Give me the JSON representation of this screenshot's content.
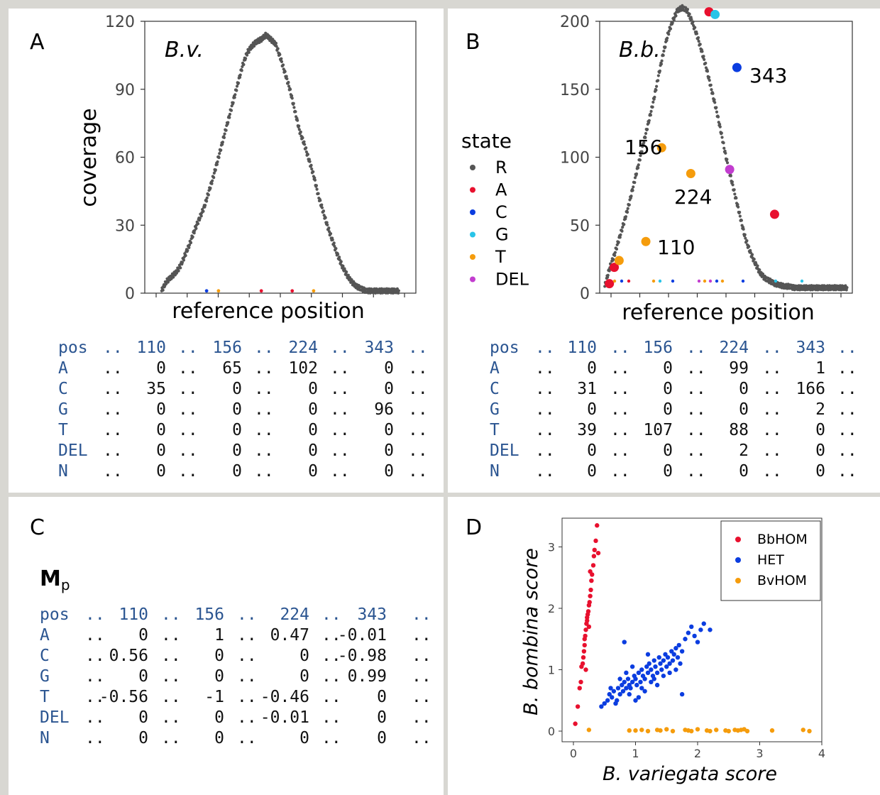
{
  "colors": {
    "R": "#555555",
    "A": "#e8102e",
    "C": "#0b3de0",
    "G": "#28c4e8",
    "T": "#f59c0c",
    "DEL": "#c23dcf",
    "rowlabel": "#2b5591"
  },
  "panels": {
    "A": {
      "label": "A",
      "chart_data": {
        "type": "scatter",
        "title": "B.v.",
        "xlabel": "reference position",
        "ylabel": "coverage",
        "ylim": [
          0,
          120
        ],
        "yticks": [
          "0",
          "30",
          "60",
          "90",
          "120"
        ],
        "series": [
          {
            "name": "R",
            "x": [
              1,
              20,
              40,
              60,
              80,
              100,
              120,
              140,
              160,
              180,
              200,
              220,
              240,
              260,
              280,
              300,
              320,
              340,
              360,
              380,
              400,
              420,
              440,
              460,
              480,
              500,
              520,
              540,
              560,
              580,
              600,
              620,
              640,
              660,
              680,
              700,
              720,
              740,
              760,
              780,
              800,
              820,
              840,
              860,
              880,
              900,
              920,
              940,
              960,
              980,
              1000
            ],
            "y": [
              1,
              5,
              7,
              9,
              12,
              17,
              22,
              28,
              33,
              38,
              45,
              52,
              60,
              68,
              76,
              84,
              92,
              100,
              106,
              109,
              111,
              112,
              114,
              112,
              110,
              104,
              97,
              90,
              81,
              72,
              66,
              59,
              52,
              43,
              36,
              29,
              23,
              17,
              12,
              8,
              5,
              3,
              2,
              1,
              1,
              1,
              1,
              1,
              1,
              1,
              1
            ]
          },
          {
            "name": "A",
            "x": [
              420,
              550
            ],
            "y": [
              1,
              1
            ]
          },
          {
            "name": "C",
            "x": [
              190
            ],
            "y": [
              1
            ]
          },
          {
            "name": "T",
            "x": [
              240,
              640
            ],
            "y": [
              1,
              1
            ]
          }
        ]
      },
      "table": {
        "headers": [
          "pos",
          "..",
          "110",
          "..",
          "156",
          "..",
          "224",
          "..",
          "343",
          ".."
        ],
        "rows": [
          {
            "label": "A",
            "values": [
              "0",
              "65",
              "102",
              "0"
            ]
          },
          {
            "label": "C",
            "values": [
              "35",
              "0",
              "0",
              "0"
            ]
          },
          {
            "label": "G",
            "values": [
              "0",
              "0",
              "0",
              "96"
            ]
          },
          {
            "label": "T",
            "values": [
              "0",
              "0",
              "0",
              "0"
            ]
          },
          {
            "label": "DEL",
            "values": [
              "0",
              "0",
              "0",
              "0"
            ]
          },
          {
            "label": "N",
            "values": [
              "0",
              "0",
              "0",
              "0"
            ]
          }
        ]
      }
    },
    "B": {
      "label": "B",
      "chart_data": {
        "type": "scatter",
        "title": "B.b.",
        "xlabel": "reference position",
        "ylim": [
          0,
          200
        ],
        "yticks": [
          "0",
          "50",
          "100",
          "150",
          "200"
        ],
        "legend": {
          "title": "state",
          "entries": [
            "R",
            "A",
            "C",
            "G",
            "T",
            "DEL"
          ],
          "placement": "left"
        },
        "annotations": [
          "110",
          "156",
          "224",
          "343"
        ],
        "series": [
          {
            "name": "R",
            "x": [
              1,
              20,
              40,
              60,
              80,
              100,
              120,
              140,
              160,
              180,
              200,
              220,
              240,
              260,
              280,
              300,
              320,
              340,
              360,
              380,
              400,
              420,
              440,
              460,
              480,
              500,
              520,
              540,
              560,
              580,
              600,
              620,
              640,
              660,
              680,
              700,
              720,
              740,
              760,
              780,
              800,
              820,
              840,
              860,
              880,
              900,
              920,
              940,
              960,
              980,
              1000
            ],
            "y": [
              5,
              18,
              28,
              40,
              52,
              65,
              80,
              95,
              110,
              125,
              140,
              158,
              175,
              190,
              200,
              208,
              210,
              208,
              200,
              190,
              178,
              165,
              150,
              135,
              118,
              100,
              85,
              70,
              55,
              40,
              30,
              22,
              15,
              11,
              9,
              7,
              6,
              5,
              5,
              4,
              4,
              4,
              4,
              4,
              4,
              4,
              4,
              4,
              4,
              4,
              4
            ]
          },
          {
            "name": "A",
            "x": [
              20,
              40,
              430,
              700
            ],
            "y": [
              7,
              19,
              207,
              58
            ]
          },
          {
            "name": "C",
            "x": [
              545
            ],
            "y": [
              166
            ]
          },
          {
            "name": "G",
            "x": [
              455
            ],
            "y": [
              205
            ]
          },
          {
            "name": "T",
            "x": [
              60,
              170,
              235,
              355
            ],
            "y": [
              24,
              38,
              107,
              88
            ]
          },
          {
            "name": "DEL",
            "x": [
              515
            ],
            "y": [
              91
            ]
          }
        ]
      },
      "table": {
        "headers": [
          "pos",
          "..",
          "110",
          "..",
          "156",
          "..",
          "224",
          "..",
          "343",
          ".."
        ],
        "rows": [
          {
            "label": "A",
            "values": [
              "0",
              "0",
              "99",
              "1"
            ]
          },
          {
            "label": "C",
            "values": [
              "31",
              "0",
              "0",
              "166"
            ]
          },
          {
            "label": "G",
            "values": [
              "0",
              "0",
              "0",
              "2"
            ]
          },
          {
            "label": "T",
            "values": [
              "39",
              "107",
              "88",
              "0"
            ]
          },
          {
            "label": "DEL",
            "values": [
              "0",
              "0",
              "2",
              "0"
            ]
          },
          {
            "label": "N",
            "values": [
              "0",
              "0",
              "0",
              "0"
            ]
          }
        ]
      }
    },
    "C": {
      "label": "C",
      "matrix_title": "M",
      "matrix_subscript": "p",
      "table": {
        "headers": [
          "pos",
          "..",
          "110",
          "..",
          "156",
          "..",
          "224",
          "..",
          "343",
          ".."
        ],
        "rows": [
          {
            "label": "A",
            "values": [
              "0",
              "1",
              "0.47",
              "-0.01"
            ]
          },
          {
            "label": "C",
            "values": [
              "0.56",
              "0",
              "0",
              "-0.98"
            ]
          },
          {
            "label": "G",
            "values": [
              "0",
              "0",
              "0",
              "0.99"
            ]
          },
          {
            "label": "T",
            "values": [
              "-0.56",
              "-1",
              "-0.46",
              "0"
            ]
          },
          {
            "label": "DEL",
            "values": [
              "0",
              "0",
              "-0.01",
              "0"
            ]
          },
          {
            "label": "N",
            "values": [
              "0",
              "0",
              "0",
              "0"
            ]
          }
        ]
      }
    },
    "D": {
      "label": "D",
      "chart_data": {
        "type": "scatter",
        "xlabel": "B. variegata score",
        "ylabel": "B. bombina score",
        "xlim": [
          0,
          4
        ],
        "ylim": [
          0,
          3.4
        ],
        "xticks": [
          "0",
          "1",
          "2",
          "3",
          "4"
        ],
        "yticks": [
          "0",
          "1",
          "2",
          "3"
        ],
        "legend": {
          "entries": [
            "BbHOM",
            "HET",
            "BvHOM"
          ],
          "placement": "top-right"
        },
        "series": [
          {
            "name": "BbHOM",
            "x": [
              0.03,
              0.07,
              0.1,
              0.12,
              0.13,
              0.15,
              0.16,
              0.17,
              0.18,
              0.19,
              0.2,
              0.21,
              0.22,
              0.23,
              0.24,
              0.25,
              0.26,
              0.27,
              0.28,
              0.29,
              0.3,
              0.32,
              0.33,
              0.34,
              0.36,
              0.38,
              0.4,
              0.2,
              0.18,
              0.25,
              0.27,
              0.22
            ],
            "y": [
              0.12,
              0.4,
              0.7,
              0.8,
              1.05,
              1.1,
              1.2,
              1.3,
              1.4,
              1.55,
              1.65,
              1.75,
              1.8,
              1.9,
              1.95,
              2.05,
              2.1,
              2.2,
              2.3,
              2.45,
              2.55,
              2.7,
              2.85,
              2.95,
              3.1,
              3.35,
              2.9,
              1.0,
              1.5,
              1.7,
              2.6,
              1.85
            ]
          },
          {
            "name": "HET",
            "x": [
              0.45,
              0.5,
              0.55,
              0.58,
              0.62,
              0.65,
              0.7,
              0.72,
              0.75,
              0.78,
              0.8,
              0.82,
              0.85,
              0.88,
              0.9,
              0.92,
              0.95,
              0.98,
              1.0,
              1.02,
              1.05,
              1.08,
              1.1,
              1.12,
              1.15,
              1.18,
              1.2,
              1.22,
              1.25,
              1.28,
              1.3,
              1.32,
              1.35,
              1.38,
              1.4,
              1.42,
              1.45,
              1.48,
              1.5,
              1.52,
              1.55,
              1.58,
              1.6,
              1.62,
              1.65,
              1.68,
              1.7,
              1.72,
              1.75,
              1.8,
              1.85,
              1.9,
              1.95,
              2.0,
              2.05,
              2.1,
              2.2,
              0.85,
              0.9,
              1.0,
              1.1,
              0.75,
              0.6,
              0.68,
              1.15,
              1.25,
              1.35,
              1.45,
              1.55,
              1.65,
              1.75,
              1.2,
              0.95,
              1.05,
              1.3,
              0.82
            ],
            "y": [
              0.4,
              0.45,
              0.5,
              0.6,
              0.55,
              0.65,
              0.5,
              0.7,
              0.6,
              0.75,
              0.65,
              0.8,
              0.7,
              0.85,
              0.75,
              0.7,
              0.8,
              0.9,
              0.85,
              0.75,
              0.95,
              0.8,
              1.0,
              0.9,
              0.85,
              1.05,
              0.95,
              1.1,
              1.0,
              0.9,
              1.15,
              1.05,
              0.95,
              1.2,
              1.1,
              1.0,
              1.15,
              1.25,
              1.05,
              1.2,
              1.1,
              1.3,
              1.15,
              1.25,
              1.35,
              1.2,
              1.4,
              1.1,
              1.3,
              1.5,
              1.6,
              1.7,
              1.55,
              1.45,
              1.65,
              1.75,
              1.65,
              0.95,
              0.6,
              0.5,
              0.7,
              0.85,
              0.7,
              0.45,
              0.65,
              0.8,
              0.75,
              0.9,
              0.95,
              1.0,
              0.6,
              1.25,
              1.05,
              0.55,
              0.85,
              1.45
            ]
          },
          {
            "name": "BvHOM",
            "x": [
              0.25,
              1.0,
              1.2,
              1.35,
              1.4,
              1.5,
              1.6,
              1.8,
              1.85,
              1.9,
              2.0,
              2.15,
              2.3,
              2.5,
              2.6,
              2.65,
              2.75,
              2.8,
              3.2,
              3.7,
              3.8,
              0.9,
              1.1,
              2.2,
              2.45,
              2.7
            ],
            "y": [
              0.02,
              0.01,
              0.0,
              0.02,
              0.01,
              0.03,
              0.0,
              0.02,
              0.01,
              0.0,
              0.03,
              0.01,
              0.02,
              0.0,
              0.02,
              0.01,
              0.03,
              0.0,
              0.01,
              0.02,
              0.0,
              0.01,
              0.02,
              0.0,
              0.01,
              0.02
            ]
          }
        ]
      }
    }
  }
}
